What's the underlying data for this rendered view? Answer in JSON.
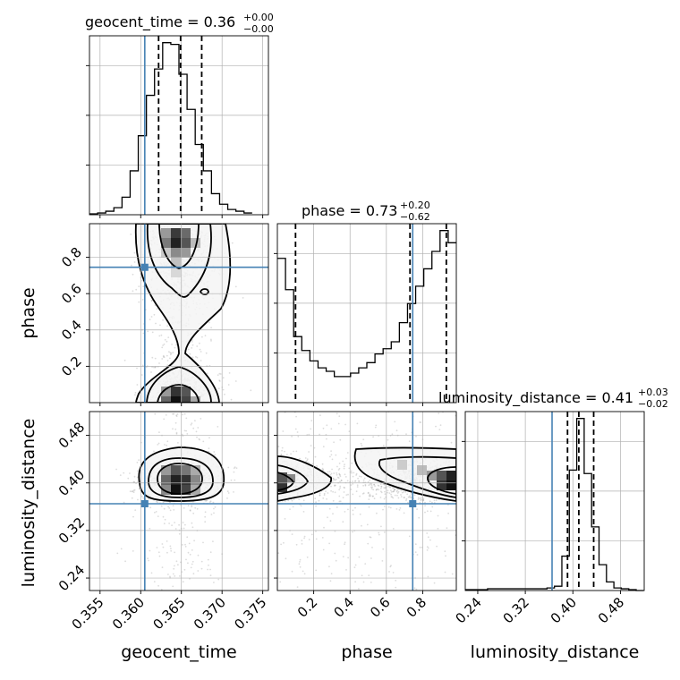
{
  "colors": {
    "truth": "#4682b4",
    "hist_line": "#000000",
    "grid": "#b0b0b0",
    "points": "#9a9a9a"
  },
  "chart_data": {
    "type": "corner",
    "parameters": [
      "geocent_time",
      "phase",
      "luminosity_distance"
    ],
    "truths": {
      "geocent_time": 0.3605,
      "phase": 0.745,
      "luminosity_distance": 0.365
    },
    "titles": [
      {
        "param": "geocent_time",
        "text": "geocent_time = 0.36",
        "sup": "+0.00",
        "sub": "−0.00"
      },
      {
        "param": "phase",
        "text": "phase = 0.73",
        "sup": "+0.20",
        "sub": "−0.62"
      },
      {
        "param": "luminosity_distance",
        "text": "luminosity_distance = 0.41",
        "sup": "+0.03",
        "sub": "−0.02"
      }
    ],
    "xlabels": [
      "geocent_time",
      "phase",
      "luminosity_distance"
    ],
    "ylabels": [
      "",
      "phase",
      "luminosity_distance"
    ],
    "ranges": {
      "geocent_time": [
        0.3537,
        0.3757
      ],
      "phase": [
        0.0,
        0.985
      ],
      "luminosity_distance": [
        0.219,
        0.52
      ]
    },
    "ticks": {
      "geocent_time": [
        "0.355",
        "0.360",
        "0.365",
        "0.370",
        "0.375"
      ],
      "phase": [
        "0.2",
        "0.4",
        "0.6",
        "0.8"
      ],
      "luminosity_distance": [
        "0.24",
        "0.32",
        "0.40",
        "0.48"
      ]
    },
    "quantiles": {
      "geocent_time": [
        0.3622,
        0.3649,
        0.3675
      ],
      "phase": [
        0.1,
        0.73,
        0.93
      ],
      "luminosity_distance": [
        0.391,
        0.41,
        0.435
      ]
    },
    "histograms": {
      "geocent_time": {
        "edges_range": [
          0.3537,
          0.3737
        ],
        "counts": [
          0.5,
          1,
          2,
          4,
          10,
          25,
          45,
          68,
          83,
          98,
          97,
          80,
          60,
          40,
          25,
          12,
          6,
          3,
          2,
          1
        ]
      },
      "phase": {
        "edges_range": [
          0.0,
          0.985
        ],
        "counts": [
          83,
          65,
          38,
          30,
          24,
          20,
          18,
          15,
          15,
          17,
          20,
          23,
          28,
          31,
          35,
          46,
          57,
          67,
          77,
          87,
          99,
          92
        ]
      },
      "luminosity_distance": {
        "edges_range": [
          0.219,
          0.519
        ],
        "counts": [
          0.5,
          0.5,
          0.5,
          1,
          1,
          1,
          1,
          1,
          1,
          1,
          1,
          1.5,
          2.5,
          20,
          70,
          100,
          68,
          37,
          15,
          5,
          1.5,
          1,
          0.5,
          0
        ]
      }
    },
    "grid": true,
    "contour_levels": [
      "0.5 sigma",
      "1 sigma",
      "1.5 sigma",
      "2 sigma"
    ]
  }
}
